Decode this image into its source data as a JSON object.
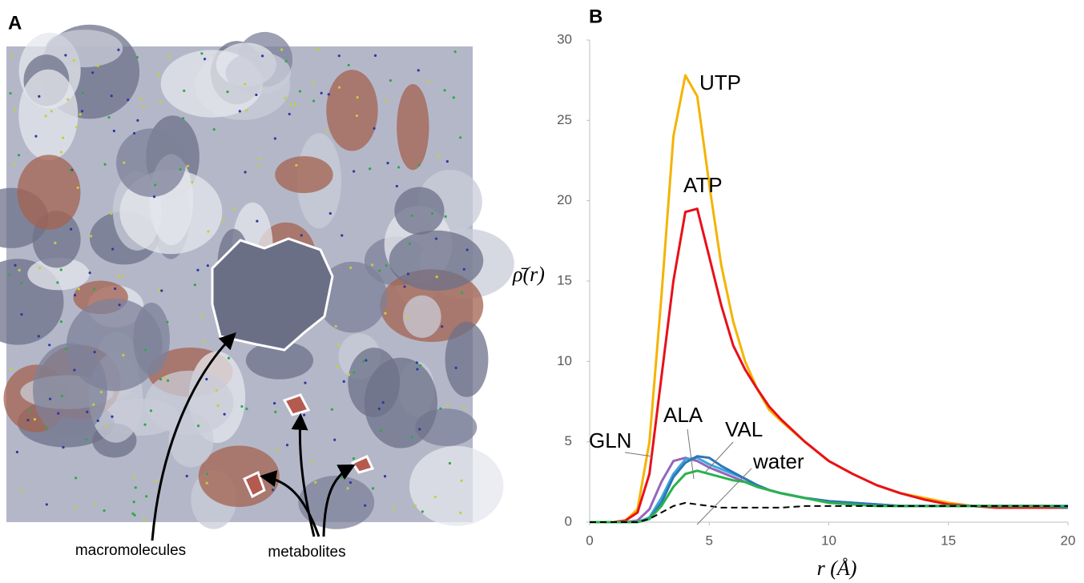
{
  "panels": {
    "a_label": "A",
    "b_label": "B"
  },
  "image_annotations": [
    "macromolecules",
    "metabolites"
  ],
  "chart_data": {
    "type": "line",
    "xlabel": "r (Å)",
    "ylabel": "ρ̄(r)",
    "xlim": [
      0,
      20
    ],
    "xticks": [
      0,
      5,
      10,
      15,
      20
    ],
    "ylim": [
      0,
      30
    ],
    "yticks": [
      0,
      5,
      10,
      15,
      20,
      25,
      30
    ],
    "grid": false,
    "x": [
      0,
      0.5,
      1,
      1.5,
      2,
      2.5,
      3,
      3.5,
      4,
      4.5,
      5,
      5.5,
      6,
      6.5,
      7,
      7.5,
      8,
      9,
      10,
      11,
      12,
      13,
      14,
      15,
      16,
      17,
      18,
      19,
      20
    ],
    "series": [
      {
        "name": "UTP",
        "color": "#f5b300",
        "values": [
          0,
          0,
          0,
          0.1,
          0.8,
          5,
          14,
          24,
          27.8,
          26.5,
          21,
          16,
          12.5,
          10,
          8.3,
          7,
          6.3,
          5,
          3.8,
          3,
          2.3,
          1.8,
          1.5,
          1.2,
          1,
          0.9,
          0.9,
          0.9,
          0.9
        ]
      },
      {
        "name": "ATP",
        "color": "#e8101a",
        "values": [
          0,
          0,
          0,
          0.1,
          0.6,
          3,
          9,
          15,
          19.3,
          19.5,
          16.5,
          13.5,
          11,
          9.5,
          8.3,
          7.2,
          6.4,
          5,
          3.8,
          3,
          2.3,
          1.8,
          1.4,
          1.1,
          1,
          0.9,
          0.9,
          0.9,
          0.9
        ]
      },
      {
        "name": "GLN",
        "color": "#9467bd",
        "values": [
          0,
          0,
          0,
          0,
          0.1,
          0.8,
          2.5,
          3.8,
          4,
          3.8,
          3.4,
          3.1,
          2.8,
          2.5,
          2.2,
          2,
          1.8,
          1.5,
          1.3,
          1.2,
          1.1,
          1,
          1,
          1,
          1,
          1,
          1,
          1,
          1
        ]
      },
      {
        "name": "ALA",
        "color": "#3aa6dd",
        "values": [
          0,
          0,
          0,
          0,
          0,
          0.3,
          1.5,
          3,
          3.9,
          4,
          3.6,
          3.3,
          3,
          2.7,
          2.3,
          2,
          1.8,
          1.5,
          1.3,
          1.2,
          1.1,
          1,
          1,
          1,
          1,
          1,
          1,
          1,
          1
        ]
      },
      {
        "name": "VAL",
        "color": "#2e75b6",
        "values": [
          0,
          0,
          0,
          0,
          0,
          0.2,
          1.2,
          2.8,
          3.7,
          4.1,
          4,
          3.5,
          3.1,
          2.7,
          2.3,
          2,
          1.8,
          1.5,
          1.3,
          1.2,
          1.1,
          1,
          1,
          1,
          1,
          1,
          1,
          1,
          0.9
        ]
      },
      {
        "color": "#2bb24c",
        "values": [
          0,
          0,
          0,
          0,
          0,
          0.2,
          1,
          2.2,
          3,
          3.2,
          3,
          2.8,
          2.6,
          2.5,
          2.2,
          2,
          1.8,
          1.5,
          1.2,
          1.1,
          1,
          1,
          1,
          1,
          1,
          1,
          1,
          1,
          1
        ]
      },
      {
        "name": "water",
        "color": "#000000",
        "dash": true,
        "values": [
          0,
          0,
          0,
          0,
          0,
          0.2,
          0.6,
          1,
          1.2,
          1.1,
          1,
          0.9,
          0.9,
          0.9,
          0.9,
          0.9,
          0.9,
          1,
          1,
          1,
          1,
          1,
          1,
          1,
          1,
          1,
          1,
          1,
          1
        ]
      }
    ]
  }
}
